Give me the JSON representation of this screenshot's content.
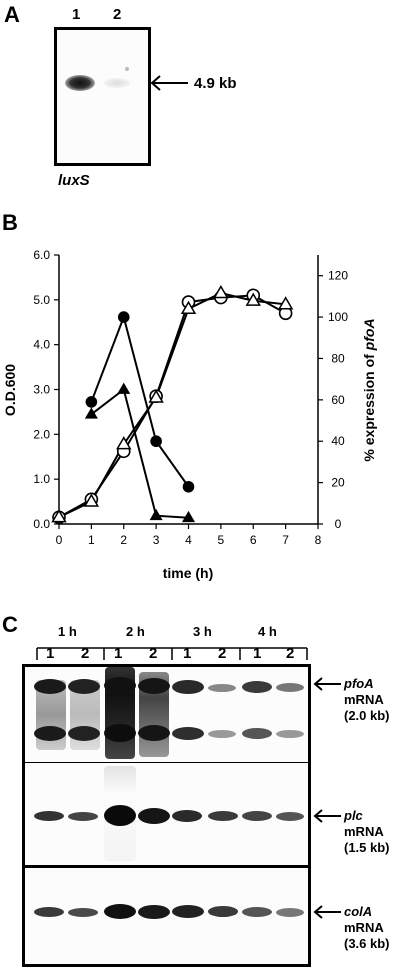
{
  "panel_a": {
    "letter": "A",
    "lanes": [
      "1",
      "2"
    ],
    "size_label": "4.9 kb",
    "gene_label": "luxS"
  },
  "panel_b": {
    "letter": "B"
  },
  "chart_data": {
    "type": "line",
    "xlabel": "time (h)",
    "ylabel_left": "O.D.600",
    "ylabel_right_prefix": "% expression of ",
    "ylabel_right_gene": "pfoA",
    "x_ticks": [
      0,
      1,
      2,
      3,
      4,
      5,
      6,
      7,
      8
    ],
    "y_left_ticks": [
      "0.0",
      "1.0",
      "2.0",
      "3.0",
      "4.0",
      "5.0",
      "6.0"
    ],
    "y_right_ticks": [
      "0",
      "20",
      "40",
      "60",
      "80",
      "100",
      "120"
    ],
    "xlim": [
      0,
      8
    ],
    "ylim_left": [
      0,
      6
    ],
    "ylim_right": [
      0,
      130
    ],
    "grid": false,
    "series": [
      {
        "marker": "filled-circle",
        "axis": "right",
        "x": [
          1,
          2,
          3,
          4
        ],
        "y": [
          59,
          100,
          40,
          18
        ]
      },
      {
        "marker": "filled-triangle",
        "axis": "right",
        "x": [
          1,
          2,
          3,
          4
        ],
        "y": [
          53,
          65,
          4,
          3
        ]
      },
      {
        "marker": "open-circle",
        "axis": "left",
        "x": [
          0,
          1,
          2,
          3,
          4,
          5,
          6,
          7
        ],
        "y": [
          0.15,
          0.55,
          1.62,
          2.85,
          4.95,
          5.05,
          5.1,
          4.7
        ]
      },
      {
        "marker": "open-triangle",
        "axis": "left",
        "x": [
          0,
          1,
          2,
          3,
          4,
          5,
          6,
          7
        ],
        "y": [
          0.15,
          0.5,
          1.78,
          2.82,
          4.8,
          5.15,
          4.98,
          4.9
        ]
      }
    ]
  },
  "panel_c": {
    "letter": "C",
    "timepoints": [
      "1 h",
      "2 h",
      "3 h",
      "4 h"
    ],
    "lanes": [
      "1",
      "2",
      "1",
      "2",
      "1",
      "2",
      "1",
      "2"
    ],
    "blots": [
      {
        "gene": "pfoA",
        "line2": "mRNA",
        "line3": "(2.0 kb)"
      },
      {
        "gene": "plc",
        "line2": "mRNA",
        "line3": "(1.5 kb)"
      },
      {
        "gene": "colA",
        "line2": "mRNA",
        "line3": "(3.6 kb)"
      }
    ]
  }
}
